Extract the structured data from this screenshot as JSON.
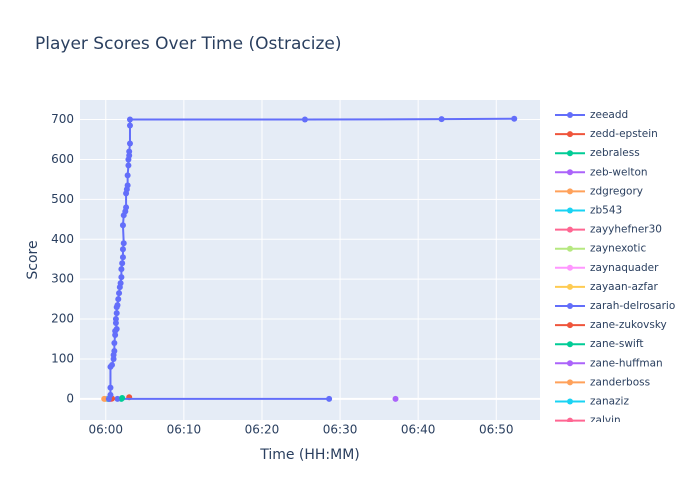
{
  "chart_data": {
    "type": "line",
    "title": "Player Scores Over Time (Ostracize)",
    "x_label": "Time (HH:MM)",
    "y_label": "Score",
    "xlim": [
      -3.3,
      55.6
    ],
    "ylim": [
      -53,
      749
    ],
    "xticks": [
      {
        "value": 0,
        "label": "06:00"
      },
      {
        "value": 10,
        "label": "06:10"
      },
      {
        "value": 20,
        "label": "06:20"
      },
      {
        "value": 30,
        "label": "06:30"
      },
      {
        "value": 40,
        "label": "06:40"
      },
      {
        "value": 50,
        "label": "06:50"
      }
    ],
    "yticks": [
      0,
      100,
      200,
      300,
      400,
      500,
      600,
      700
    ],
    "grid": true,
    "legend": "right",
    "series": [
      {
        "name": "zeeadd",
        "color": "#636efa",
        "x": [
          0.4,
          0.6,
          0.6,
          0.6,
          0.8,
          1.0,
          1.0,
          1.1,
          1.1,
          1.2,
          1.2,
          1.4,
          1.3,
          1.3,
          1.4,
          1.4,
          1.5,
          1.6,
          1.7,
          1.8,
          1.9,
          2.0,
          2.0,
          2.1,
          2.2,
          2.2,
          2.3,
          2.2,
          2.3,
          2.5,
          2.6,
          2.6,
          2.7,
          2.8,
          2.8,
          2.9,
          2.9,
          3.0,
          3.0,
          3.1,
          3.1,
          3.1,
          25.5,
          43.0,
          52.3
        ],
        "values": [
          0,
          10,
          28,
          80,
          85,
          100,
          110,
          120,
          140,
          160,
          170,
          175,
          190,
          200,
          215,
          230,
          235,
          250,
          265,
          280,
          290,
          305,
          325,
          340,
          355,
          375,
          390,
          435,
          460,
          470,
          480,
          515,
          525,
          535,
          560,
          585,
          600,
          610,
          620,
          640,
          685,
          700,
          700,
          701,
          702
        ]
      },
      {
        "name": "zedd-epstein",
        "color": "#EF553B",
        "x": [
          0.8
        ],
        "values": [
          1
        ]
      },
      {
        "name": "zebraless",
        "color": "#00cc96",
        "x": [
          2.1
        ],
        "values": [
          2
        ]
      },
      {
        "name": "zeb-welton",
        "color": "#ab63fa",
        "x": [
          37.1
        ],
        "values": [
          0
        ]
      },
      {
        "name": "zdgregory",
        "color": "#FFA15A",
        "x": [
          -0.2
        ],
        "values": [
          0
        ]
      },
      {
        "name": "zb543",
        "color": "#19d3f3",
        "x": [
          0.3
        ],
        "values": [
          0
        ]
      },
      {
        "name": "zayyhefner30",
        "color": "#FF6692",
        "x": [
          0.5
        ],
        "values": [
          0
        ]
      },
      {
        "name": "zaynexotic",
        "color": "#B6E880",
        "x": [
          0.2
        ],
        "values": [
          0
        ]
      },
      {
        "name": "zaynaquader",
        "color": "#FF97FF",
        "x": [
          0.1
        ],
        "values": [
          0
        ]
      },
      {
        "name": "zayaan-azfar",
        "color": "#FECB52",
        "x": [
          0.0
        ],
        "values": [
          0
        ]
      },
      {
        "name": "zarah-delrosario",
        "color": "#636efa",
        "x": [
          0.5,
          1.5,
          28.6
        ],
        "values": [
          0,
          0,
          0
        ]
      },
      {
        "name": "zane-zukovsky",
        "color": "#EF553B",
        "x": [
          3.0
        ],
        "values": [
          4
        ]
      },
      {
        "name": "zane-swift",
        "color": "#00cc96",
        "x": [
          2.0
        ],
        "values": [
          0
        ]
      },
      {
        "name": "zane-huffman",
        "color": "#ab63fa",
        "x": [
          0.6
        ],
        "values": [
          0
        ]
      },
      {
        "name": "zanderboss",
        "color": "#FFA15A",
        "x": [
          0.1
        ],
        "values": [
          0
        ]
      },
      {
        "name": "zanaziz",
        "color": "#19d3f3",
        "x": [
          0.4
        ],
        "values": [
          0
        ]
      },
      {
        "name": "zalvin",
        "color": "#FF6692",
        "x": [
          0.7
        ],
        "values": [
          0
        ]
      }
    ]
  }
}
